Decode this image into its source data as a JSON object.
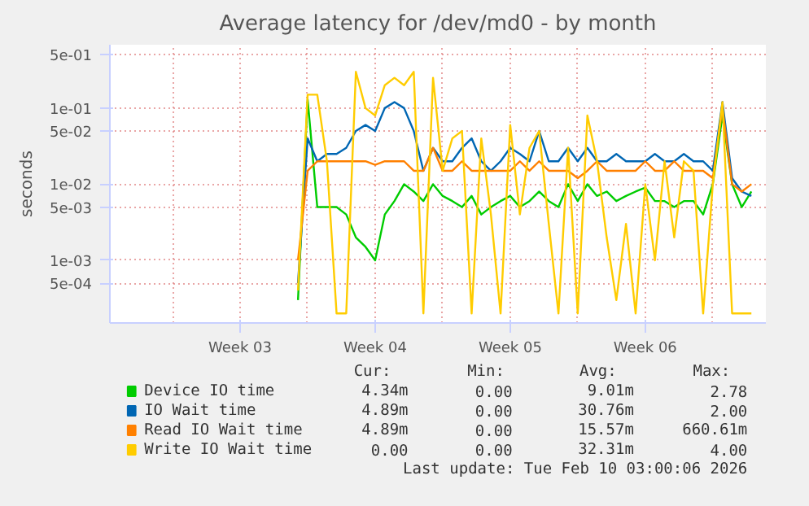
{
  "chart_data": {
    "type": "line",
    "title": "Average latency for /dev/md0 - by month",
    "ylabel": "seconds",
    "log": true,
    "grid": true,
    "legend": "bottom",
    "line_style": "solid",
    "marker": "none",
    "categories": [
      null,
      null,
      null,
      null,
      null,
      null,
      null,
      null,
      null,
      null,
      null,
      null,
      null,
      "Week 03",
      null,
      null,
      null,
      null,
      null,
      null,
      null,
      null,
      null,
      null,
      null,
      null,
      null,
      "Week 04",
      null,
      null,
      null,
      null,
      null,
      null,
      null,
      null,
      null,
      null,
      null,
      null,
      null,
      "Week 05",
      null,
      null,
      null,
      null,
      null,
      null,
      null,
      null,
      null,
      null,
      null,
      null,
      null,
      "Week 06",
      null,
      null,
      null,
      null,
      null,
      null,
      null,
      null,
      null,
      null,
      null,
      null
    ],
    "ylim": [
      0.00015,
      0.68
    ],
    "yticks": [
      {
        "value": 0.0005,
        "label": "5e-04"
      },
      {
        "value": 0.001,
        "label": "1e-03"
      },
      {
        "value": 0.005,
        "label": "5e-03"
      },
      {
        "value": 0.01,
        "label": "1e-02"
      },
      {
        "value": 0.05,
        "label": "5e-02"
      },
      {
        "value": 0.1,
        "label": "1e-01"
      },
      {
        "value": 0.5,
        "label": "5e-01"
      }
    ],
    "series": [
      {
        "name": "Device IO time",
        "color": "#00cc00",
        "values": [
          null,
          null,
          null,
          null,
          null,
          null,
          null,
          null,
          null,
          null,
          null,
          null,
          null,
          null,
          null,
          null,
          null,
          null,
          null,
          0.0003,
          0.13,
          0.005,
          0.005,
          0.005,
          0.004,
          0.002,
          0.0015,
          0.001,
          0.004,
          0.006,
          0.01,
          0.008,
          0.006,
          0.01,
          0.007,
          0.006,
          0.005,
          0.007,
          0.004,
          0.005,
          0.006,
          0.007,
          0.005,
          0.006,
          0.008,
          0.006,
          0.005,
          0.01,
          0.006,
          0.01,
          0.007,
          0.008,
          0.006,
          0.007,
          0.008,
          0.009,
          0.006,
          0.006,
          0.005,
          0.006,
          0.006,
          0.004,
          0.01,
          0.08,
          0.01,
          0.005,
          0.008,
          null
        ]
      },
      {
        "name": "IO Wait time",
        "color": "#0066b3",
        "values": [
          null,
          null,
          null,
          null,
          null,
          null,
          null,
          null,
          null,
          null,
          null,
          null,
          null,
          null,
          null,
          null,
          null,
          null,
          null,
          0.0005,
          0.04,
          0.02,
          0.025,
          0.025,
          0.03,
          0.05,
          0.06,
          0.05,
          0.1,
          0.12,
          0.1,
          0.05,
          0.015,
          0.03,
          0.02,
          0.02,
          0.03,
          0.04,
          0.02,
          0.015,
          0.02,
          0.03,
          0.025,
          0.02,
          0.05,
          0.02,
          0.02,
          0.03,
          0.02,
          0.03,
          0.02,
          0.02,
          0.025,
          0.02,
          0.02,
          0.02,
          0.025,
          0.02,
          0.02,
          0.025,
          0.02,
          0.02,
          0.015,
          0.12,
          0.012,
          0.008,
          0.007,
          null
        ]
      },
      {
        "name": "Read IO Wait time",
        "color": "#ff8000",
        "values": [
          null,
          null,
          null,
          null,
          null,
          null,
          null,
          null,
          null,
          null,
          null,
          null,
          null,
          null,
          null,
          null,
          null,
          null,
          null,
          0.001,
          0.015,
          0.02,
          0.02,
          0.02,
          0.02,
          0.02,
          0.02,
          0.018,
          0.02,
          0.02,
          0.02,
          0.015,
          0.015,
          0.03,
          0.015,
          0.015,
          0.02,
          0.015,
          0.015,
          0.015,
          0.015,
          0.015,
          0.02,
          0.015,
          0.02,
          0.015,
          0.015,
          0.015,
          0.012,
          0.015,
          0.02,
          0.015,
          0.015,
          0.015,
          0.015,
          0.02,
          0.015,
          0.015,
          0.02,
          0.015,
          0.015,
          0.015,
          0.012,
          0.1,
          0.01,
          0.008,
          0.01,
          null
        ]
      },
      {
        "name": "Write IO Wait time",
        "color": "#ffcc00",
        "values": [
          null,
          null,
          null,
          null,
          null,
          null,
          null,
          null,
          null,
          null,
          null,
          null,
          null,
          null,
          null,
          null,
          null,
          null,
          null,
          0.0004,
          0.15,
          0.15,
          0.02,
          0.0002,
          0.0002,
          0.3,
          0.1,
          0.08,
          0.2,
          0.25,
          0.2,
          0.3,
          0.0002,
          0.25,
          0.015,
          0.04,
          0.05,
          0.0002,
          0.04,
          0.004,
          0.0002,
          0.06,
          0.004,
          0.03,
          0.05,
          0.003,
          0.0002,
          0.03,
          0.0002,
          0.08,
          0.02,
          0.002,
          0.0003,
          0.003,
          0.0002,
          0.01,
          0.001,
          0.02,
          0.002,
          0.02,
          0.015,
          0.0002,
          0.01,
          0.12,
          0.0002,
          0.0002,
          0.0002,
          null
        ]
      }
    ],
    "annotations": [
      "Cur:",
      "Min:",
      "Avg:",
      "Max:",
      "4.34m",
      "0.00",
      "9.01m",
      "2.78",
      "4.89m",
      "0.00",
      "30.76m",
      "2.00",
      "4.89m",
      "0.00",
      "15.57m",
      "660.61m",
      "0.00",
      "0.00",
      "32.31m",
      "4.00",
      "Last update: Tue Feb 10 03:00:06 2026"
    ]
  }
}
